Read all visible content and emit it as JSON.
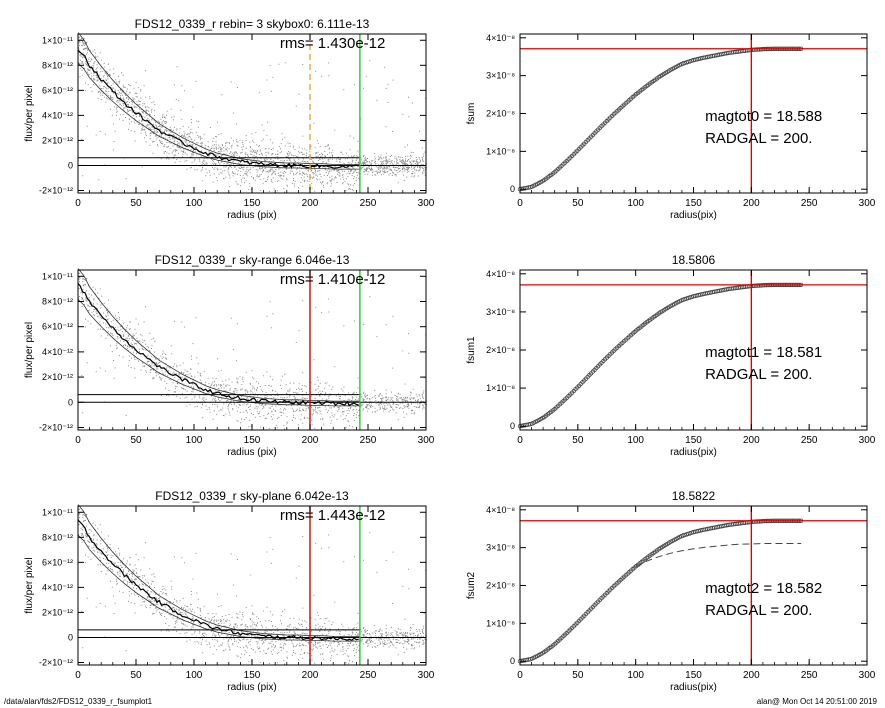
{
  "footer": {
    "left": "/data/alan/fds2/FDS12_0339_r_fsumplot1",
    "right": "alan@  Mon Oct 14 20:51:00 2019"
  },
  "colors": {
    "axes": "#000000",
    "scatter": "#8c8c8c",
    "profile": "#000000",
    "red": "#e00000",
    "green": "#18d018",
    "orange": "#f0a040",
    "curve": "#444444"
  },
  "chart_data": [
    {
      "type": "scatter",
      "title": "FDS12_0339_r rebin= 3    skybox0:  6.111e-13",
      "annotation": "rms= 1.430e-12",
      "xlabel": "radius (pix)",
      "ylabel": "flux/per pixel",
      "xlim": [
        0,
        300
      ],
      "ylim": [
        -2.2e-12,
        1.05e-11
      ],
      "xticks": [
        0,
        50,
        100,
        150,
        200,
        250,
        300
      ],
      "xtick_labels": [
        "0",
        "50",
        "100",
        "150",
        "200",
        "250",
        "300"
      ],
      "yticks": [
        -2e-12,
        0,
        2e-12,
        4e-12,
        6e-12,
        8e-12,
        1e-11
      ],
      "ytick_labels": [
        "-2×10⁻¹²",
        "0",
        "2×10⁻¹²",
        "4×10⁻¹²",
        "6×10⁻¹²",
        "8×10⁻¹²",
        "1×10⁻¹¹"
      ],
      "profile": {
        "x": [
          0,
          5,
          10,
          20,
          30,
          40,
          50,
          60,
          70,
          80,
          90,
          100,
          110,
          120,
          130,
          140,
          150,
          160,
          170,
          180,
          190,
          200,
          210,
          220,
          230,
          243
        ],
        "y": [
          9.3e-12,
          8.8e-12,
          8e-12,
          6.9e-12,
          5.9e-12,
          5e-12,
          4.2e-12,
          3.5e-12,
          2.8e-12,
          2.3e-12,
          1.8e-12,
          1.4e-12,
          1e-12,
          7e-13,
          5e-13,
          3e-13,
          2e-13,
          1e-13,
          5e-14,
          0,
          0,
          -5e-14,
          -5e-14,
          -1e-13,
          -1e-13,
          -1e-13
        ]
      },
      "hlines": [
        {
          "y": 6.111e-13,
          "x": [
            0,
            243
          ]
        },
        {
          "y": 0,
          "x": [
            0,
            300
          ]
        }
      ],
      "vlines": [
        {
          "x": 200,
          "color": "orange",
          "style": "dashed"
        },
        {
          "x": 243,
          "color": "green",
          "style": "solid"
        }
      ]
    },
    {
      "type": "line",
      "title": "",
      "xlabel": "radius(pix)",
      "ylabel": "fsum",
      "xlim": [
        0,
        300
      ],
      "ylim": [
        -1e-09,
        4.1e-08
      ],
      "xticks": [
        0,
        50,
        100,
        150,
        200,
        250,
        300
      ],
      "xtick_labels": [
        "0",
        "50",
        "100",
        "150",
        "200",
        "250",
        "300"
      ],
      "yticks": [
        0,
        1e-08,
        2e-08,
        3e-08,
        4e-08
      ],
      "ytick_labels": [
        "0",
        "1×10⁻⁸",
        "2×10⁻⁸",
        "3×10⁻⁸",
        "4×10⁻⁸"
      ],
      "curve": {
        "x": [
          0,
          10,
          20,
          30,
          40,
          50,
          60,
          70,
          80,
          90,
          100,
          110,
          120,
          130,
          140,
          150,
          160,
          170,
          180,
          190,
          200,
          210,
          220,
          230,
          243
        ],
        "y": [
          0,
          6e-10,
          2.2e-09,
          4.5e-09,
          7.3e-09,
          1.03e-08,
          1.34e-08,
          1.65e-08,
          1.95e-08,
          2.23e-08,
          2.5e-08,
          2.74e-08,
          2.96e-08,
          3.15e-08,
          3.31e-08,
          3.41e-08,
          3.48e-08,
          3.54e-08,
          3.6e-08,
          3.64e-08,
          3.68e-08,
          3.7e-08,
          3.71e-08,
          3.71e-08,
          3.71e-08
        ]
      },
      "hline": 3.71e-08,
      "vline": 200,
      "text_lines": [
        "magtot0 =  18.588",
        "RADGAL =    200."
      ]
    },
    {
      "type": "scatter",
      "title": "FDS12_0339_r sky-range  6.046e-13",
      "annotation": "rms= 1.410e-12",
      "xlabel": "radius (pix)",
      "ylabel": "flux/per pixel",
      "xlim": [
        0,
        300
      ],
      "ylim": [
        -2.2e-12,
        1.05e-11
      ],
      "xticks": [
        0,
        50,
        100,
        150,
        200,
        250,
        300
      ],
      "xtick_labels": [
        "0",
        "50",
        "100",
        "150",
        "200",
        "250",
        "300"
      ],
      "yticks": [
        -2e-12,
        0,
        2e-12,
        4e-12,
        6e-12,
        8e-12,
        1e-11
      ],
      "ytick_labels": [
        "-2×10⁻¹²",
        "0",
        "2×10⁻¹²",
        "4×10⁻¹²",
        "6×10⁻¹²",
        "8×10⁻¹²",
        "1×10⁻¹¹"
      ],
      "profile": {
        "x": [
          0,
          5,
          10,
          20,
          30,
          40,
          50,
          60,
          70,
          80,
          90,
          100,
          110,
          120,
          130,
          140,
          150,
          160,
          170,
          180,
          190,
          200,
          210,
          220,
          230,
          243
        ],
        "y": [
          9.3e-12,
          8.8e-12,
          8e-12,
          6.9e-12,
          5.9e-12,
          5e-12,
          4.2e-12,
          3.5e-12,
          2.8e-12,
          2.3e-12,
          1.8e-12,
          1.4e-12,
          1e-12,
          7e-13,
          5e-13,
          3e-13,
          2e-13,
          1e-13,
          5e-14,
          0,
          0,
          -5e-14,
          -5e-14,
          -1e-13,
          -1e-13,
          -1e-13
        ]
      },
      "hlines": [
        {
          "y": 6.046e-13,
          "x": [
            0,
            243
          ]
        },
        {
          "y": 0,
          "x": [
            0,
            300
          ]
        }
      ],
      "vlines": [
        {
          "x": 200,
          "color": "red",
          "style": "solid"
        },
        {
          "x": 243,
          "color": "green",
          "style": "solid"
        }
      ]
    },
    {
      "type": "line",
      "title": "18.5806",
      "xlabel": "radius(pix)",
      "ylabel": "fsum1",
      "xlim": [
        0,
        300
      ],
      "ylim": [
        -1e-09,
        4.1e-08
      ],
      "xticks": [
        0,
        50,
        100,
        150,
        200,
        250,
        300
      ],
      "xtick_labels": [
        "0",
        "50",
        "100",
        "150",
        "200",
        "250",
        "300"
      ],
      "yticks": [
        0,
        1e-08,
        2e-08,
        3e-08,
        4e-08
      ],
      "ytick_labels": [
        "0",
        "1×10⁻⁸",
        "2×10⁻⁸",
        "3×10⁻⁸",
        "4×10⁻⁸"
      ],
      "curve": {
        "x": [
          0,
          10,
          20,
          30,
          40,
          50,
          60,
          70,
          80,
          90,
          100,
          110,
          120,
          130,
          140,
          150,
          160,
          170,
          180,
          190,
          200,
          210,
          220,
          230,
          243
        ],
        "y": [
          0,
          6e-10,
          2.2e-09,
          4.5e-09,
          7.3e-09,
          1.03e-08,
          1.34e-08,
          1.65e-08,
          1.95e-08,
          2.23e-08,
          2.5e-08,
          2.74e-08,
          2.96e-08,
          3.15e-08,
          3.31e-08,
          3.41e-08,
          3.48e-08,
          3.54e-08,
          3.6e-08,
          3.64e-08,
          3.68e-08,
          3.7e-08,
          3.71e-08,
          3.71e-08,
          3.71e-08
        ]
      },
      "hline": 3.71e-08,
      "vline": 200,
      "text_lines": [
        "magtot1 =  18.581",
        "RADGAL =    200."
      ]
    },
    {
      "type": "scatter",
      "title": "FDS12_0339_r sky-plane  6.042e-13",
      "annotation": "rms= 1.443e-12",
      "xlabel": "radius (pix)",
      "ylabel": "flux/per pixel",
      "xlim": [
        0,
        300
      ],
      "ylim": [
        -2.2e-12,
        1.05e-11
      ],
      "xticks": [
        0,
        50,
        100,
        150,
        200,
        250,
        300
      ],
      "xtick_labels": [
        "0",
        "50",
        "100",
        "150",
        "200",
        "250",
        "300"
      ],
      "yticks": [
        -2e-12,
        0,
        2e-12,
        4e-12,
        6e-12,
        8e-12,
        1e-11
      ],
      "ytick_labels": [
        "-2×10⁻¹²",
        "0",
        "2×10⁻¹²",
        "4×10⁻¹²",
        "6×10⁻¹²",
        "8×10⁻¹²",
        "1×10⁻¹¹"
      ],
      "profile": {
        "x": [
          0,
          5,
          10,
          20,
          30,
          40,
          50,
          60,
          70,
          80,
          90,
          100,
          110,
          120,
          130,
          140,
          150,
          160,
          170,
          180,
          190,
          200,
          210,
          220,
          230,
          243
        ],
        "y": [
          9.3e-12,
          8.8e-12,
          8e-12,
          6.9e-12,
          5.9e-12,
          5e-12,
          4.2e-12,
          3.5e-12,
          2.8e-12,
          2.3e-12,
          1.8e-12,
          1.4e-12,
          1e-12,
          7e-13,
          5e-13,
          3e-13,
          2e-13,
          1e-13,
          5e-14,
          0,
          0,
          -5e-14,
          -5e-14,
          -1e-13,
          -1e-13,
          -1e-13
        ]
      },
      "hlines": [
        {
          "y": 6.042e-13,
          "x": [
            0,
            243
          ]
        },
        {
          "y": 0,
          "x": [
            0,
            300
          ]
        }
      ],
      "vlines": [
        {
          "x": 200,
          "color": "red",
          "style": "solid"
        },
        {
          "x": 243,
          "color": "green",
          "style": "solid"
        }
      ]
    },
    {
      "type": "line",
      "title": "18.5822",
      "xlabel": "radius(pix)",
      "ylabel": "fsum2",
      "xlim": [
        0,
        300
      ],
      "ylim": [
        -1e-09,
        4.1e-08
      ],
      "xticks": [
        0,
        50,
        100,
        150,
        200,
        250,
        300
      ],
      "xtick_labels": [
        "0",
        "50",
        "100",
        "150",
        "200",
        "250",
        "300"
      ],
      "yticks": [
        0,
        1e-08,
        2e-08,
        3e-08,
        4e-08
      ],
      "ytick_labels": [
        "0",
        "1×10⁻⁸",
        "2×10⁻⁸",
        "3×10⁻⁸",
        "4×10⁻⁸"
      ],
      "curve": {
        "x": [
          0,
          10,
          20,
          30,
          40,
          50,
          60,
          70,
          80,
          90,
          100,
          110,
          120,
          130,
          140,
          150,
          160,
          170,
          180,
          190,
          200,
          210,
          220,
          230,
          243
        ],
        "y": [
          0,
          6e-10,
          2.2e-09,
          4.5e-09,
          7.3e-09,
          1.03e-08,
          1.34e-08,
          1.65e-08,
          1.95e-08,
          2.23e-08,
          2.5e-08,
          2.74e-08,
          2.96e-08,
          3.15e-08,
          3.31e-08,
          3.41e-08,
          3.48e-08,
          3.54e-08,
          3.6e-08,
          3.64e-08,
          3.68e-08,
          3.7e-08,
          3.71e-08,
          3.71e-08,
          3.71e-08
        ]
      },
      "dashed": {
        "x": [
          100,
          110,
          120,
          130,
          140,
          150,
          160,
          170,
          180,
          190,
          200,
          210,
          220,
          230,
          243
        ],
        "y": [
          2.5e-08,
          2.65e-08,
          2.76e-08,
          2.85e-08,
          2.92e-08,
          2.97e-08,
          3.01e-08,
          3.04e-08,
          3.07e-08,
          3.09e-08,
          3.1e-08,
          3.11e-08,
          3.11e-08,
          3.11e-08,
          3.11e-08
        ]
      },
      "hline": 3.71e-08,
      "vline": 200,
      "text_lines": [
        "magtot2 =  18.582",
        "RADGAL =    200."
      ]
    }
  ]
}
